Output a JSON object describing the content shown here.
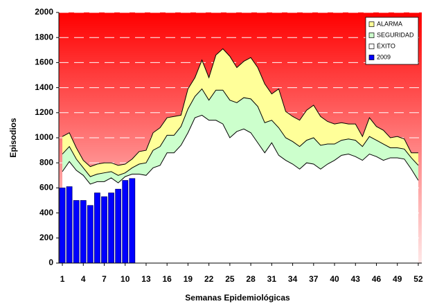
{
  "chart_data": {
    "type": "area",
    "xlabel": "Semanas Epidemiológicas",
    "ylabel": "Episodios",
    "x": [
      1,
      2,
      3,
      4,
      5,
      6,
      7,
      8,
      9,
      10,
      11,
      12,
      13,
      14,
      15,
      16,
      17,
      18,
      19,
      20,
      21,
      22,
      23,
      24,
      25,
      26,
      27,
      28,
      29,
      30,
      31,
      32,
      33,
      34,
      35,
      36,
      37,
      38,
      39,
      40,
      41,
      42,
      43,
      44,
      45,
      46,
      47,
      48,
      49,
      50,
      51,
      52
    ],
    "xlim": [
      0.5,
      52.5
    ],
    "xticks": [
      1,
      4,
      7,
      10,
      13,
      16,
      19,
      22,
      25,
      28,
      31,
      34,
      37,
      40,
      43,
      46,
      49,
      52
    ],
    "ylim": [
      0,
      2000
    ],
    "yticks": [
      0,
      200,
      400,
      600,
      800,
      1000,
      1200,
      1400,
      1600,
      1800,
      2000
    ],
    "grid": true,
    "legend": "top-right",
    "series": [
      {
        "name": "ALARMA",
        "color": "#ffff99",
        "values": [
          1010,
          1040,
          920,
          820,
          770,
          790,
          800,
          800,
          780,
          790,
          830,
          890,
          900,
          1040,
          1080,
          1160,
          1170,
          1180,
          1390,
          1480,
          1620,
          1480,
          1660,
          1710,
          1650,
          1560,
          1610,
          1640,
          1560,
          1430,
          1350,
          1390,
          1210,
          1170,
          1140,
          1220,
          1260,
          1170,
          1130,
          1110,
          1120,
          1110,
          1110,
          1010,
          1160,
          1090,
          1060,
          1000,
          1010,
          990,
          880,
          880
        ]
      },
      {
        "name": "SEGURIDAD",
        "color": "#ccffcc",
        "values": [
          870,
          930,
          830,
          760,
          690,
          710,
          720,
          730,
          700,
          720,
          760,
          790,
          800,
          900,
          930,
          1020,
          1020,
          1090,
          1230,
          1330,
          1390,
          1300,
          1380,
          1380,
          1300,
          1280,
          1320,
          1310,
          1250,
          1120,
          1140,
          1080,
          1000,
          970,
          930,
          980,
          1000,
          940,
          950,
          950,
          980,
          990,
          980,
          930,
          1010,
          980,
          950,
          920,
          920,
          910,
          840,
          780
        ]
      },
      {
        "name": "ÉXITO",
        "color": "#ffffff",
        "values": [
          730,
          810,
          740,
          700,
          630,
          650,
          650,
          680,
          640,
          690,
          710,
          710,
          700,
          760,
          780,
          880,
          880,
          940,
          1040,
          1160,
          1180,
          1140,
          1140,
          1110,
          1000,
          1050,
          1070,
          1040,
          960,
          880,
          960,
          860,
          820,
          790,
          750,
          800,
          790,
          750,
          790,
          820,
          860,
          870,
          850,
          820,
          870,
          850,
          820,
          840,
          840,
          830,
          750,
          660
        ]
      },
      {
        "name": "2009",
        "color": "#0000ff",
        "type": "bar",
        "values": [
          600,
          610,
          500,
          500,
          460,
          560,
          530,
          560,
          590,
          660,
          675,
          null,
          null,
          null,
          null,
          null,
          null,
          null,
          null,
          null,
          null,
          null,
          null,
          null,
          null,
          null,
          null,
          null,
          null,
          null,
          null,
          null,
          null,
          null,
          null,
          null,
          null,
          null,
          null,
          null,
          null,
          null,
          null,
          null,
          null,
          null,
          null,
          null,
          null,
          null,
          null,
          null
        ]
      }
    ]
  }
}
